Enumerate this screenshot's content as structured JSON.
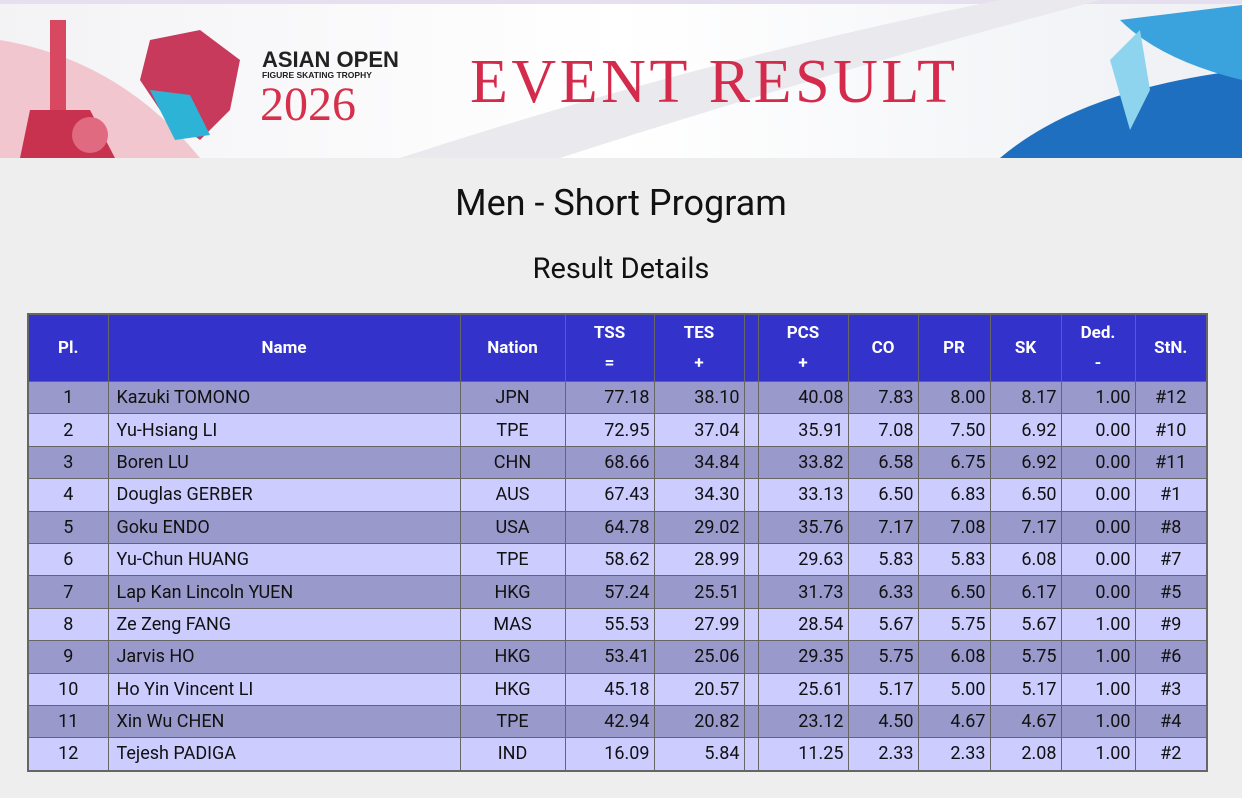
{
  "banner": {
    "brand_top": "ASIAN OPEN",
    "brand_sub": "FIGURE SKATING TROPHY",
    "brand_year": "2026",
    "heading": "EVENT RESULT"
  },
  "title": "Men - Short Program",
  "subtitle": "Result Details",
  "table": {
    "columns": [
      {
        "label": "Pl."
      },
      {
        "label": "Name"
      },
      {
        "label": "Nation"
      },
      {
        "label": "TSS",
        "sub": "="
      },
      {
        "label": "TES",
        "sub": "+"
      },
      {
        "label": "PCS",
        "sub": "+"
      },
      {
        "label": "CO"
      },
      {
        "label": "PR"
      },
      {
        "label": "SK"
      },
      {
        "label": "Ded.",
        "sub": "-"
      },
      {
        "label": "StN."
      }
    ],
    "rows": [
      [
        "1",
        "Kazuki TOMONO",
        "JPN",
        "77.18",
        "38.10",
        "40.08",
        "7.83",
        "8.00",
        "8.17",
        "1.00",
        "#12"
      ],
      [
        "2",
        "Yu-Hsiang LI",
        "TPE",
        "72.95",
        "37.04",
        "35.91",
        "7.08",
        "7.50",
        "6.92",
        "0.00",
        "#10"
      ],
      [
        "3",
        "Boren LU",
        "CHN",
        "68.66",
        "34.84",
        "33.82",
        "6.58",
        "6.75",
        "6.92",
        "0.00",
        "#11"
      ],
      [
        "4",
        "Douglas GERBER",
        "AUS",
        "67.43",
        "34.30",
        "33.13",
        "6.50",
        "6.83",
        "6.50",
        "0.00",
        "#1"
      ],
      [
        "5",
        "Goku ENDO",
        "USA",
        "64.78",
        "29.02",
        "35.76",
        "7.17",
        "7.08",
        "7.17",
        "0.00",
        "#8"
      ],
      [
        "6",
        "Yu-Chun HUANG",
        "TPE",
        "58.62",
        "28.99",
        "29.63",
        "5.83",
        "5.83",
        "6.08",
        "0.00",
        "#7"
      ],
      [
        "7",
        "Lap Kan Lincoln YUEN",
        "HKG",
        "57.24",
        "25.51",
        "31.73",
        "6.33",
        "6.50",
        "6.17",
        "0.00",
        "#5"
      ],
      [
        "8",
        "Ze Zeng FANG",
        "MAS",
        "55.53",
        "27.99",
        "28.54",
        "5.67",
        "5.75",
        "5.67",
        "1.00",
        "#9"
      ],
      [
        "9",
        "Jarvis HO",
        "HKG",
        "53.41",
        "25.06",
        "29.35",
        "5.75",
        "6.08",
        "5.75",
        "1.00",
        "#6"
      ],
      [
        "10",
        "Ho Yin Vincent LI",
        "HKG",
        "45.18",
        "20.57",
        "25.61",
        "5.17",
        "5.00",
        "5.17",
        "1.00",
        "#3"
      ],
      [
        "11",
        "Xin Wu CHEN",
        "TPE",
        "42.94",
        "20.82",
        "23.12",
        "4.50",
        "4.67",
        "4.67",
        "1.00",
        "#4"
      ],
      [
        "12",
        "Tejesh PADIGA",
        "IND",
        "16.09",
        "5.84",
        "11.25",
        "2.33",
        "2.33",
        "2.08",
        "1.00",
        "#2"
      ]
    ]
  }
}
